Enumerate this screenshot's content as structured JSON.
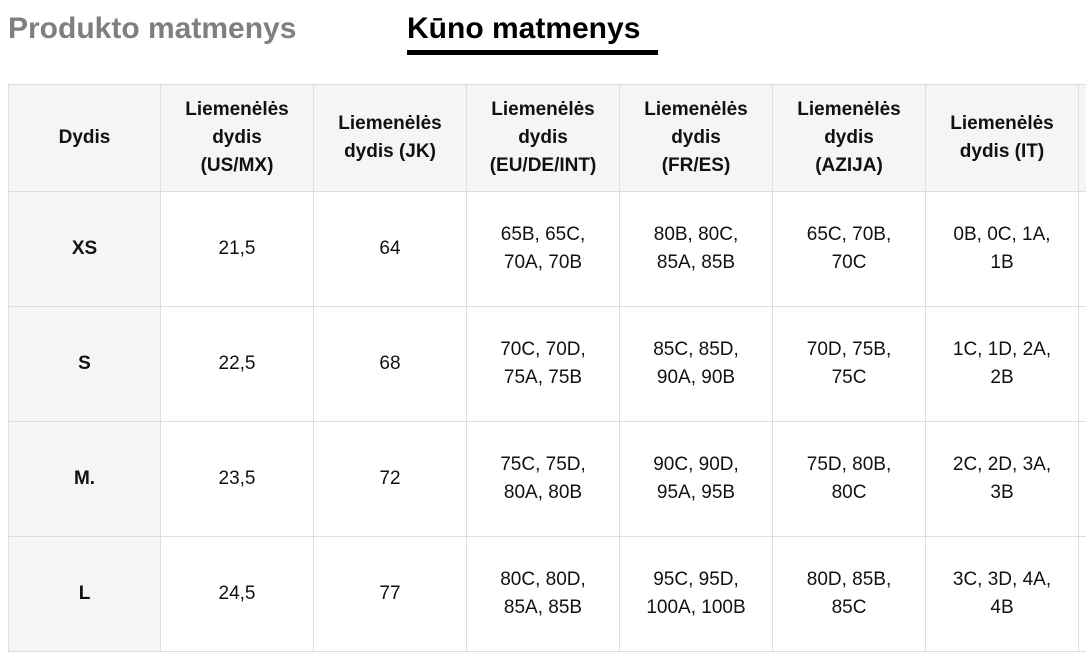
{
  "tabs": {
    "product": "Produkto matmenys",
    "body": "Kūno matmenys"
  },
  "table": {
    "headers": [
      "Dydis",
      "Liemenėlės\ndydis\n(US/MX)",
      "Liemenėlės\ndydis (JK)",
      "Liemenėlės\ndydis\n(EU/DE/INT)",
      "Liemenėlės\ndydis\n(FR/ES)",
      "Liemenėlės\ndydis\n(AZIJA)",
      "Liemenėlės\ndydis (IT)"
    ],
    "rows": [
      [
        "XS",
        "21,5",
        "64",
        "65B, 65C,\n70A, 70B",
        "80B, 80C,\n85A, 85B",
        "65C, 70B,\n70C",
        "0B, 0C, 1A,\n1B"
      ],
      [
        "S",
        "22,5",
        "68",
        "70C, 70D,\n75A, 75B",
        "85C, 85D,\n90A, 90B",
        "70D, 75B,\n75C",
        "1C, 1D, 2A,\n2B"
      ],
      [
        "M.",
        "23,5",
        "72",
        "75C, 75D,\n80A, 80B",
        "90C, 90D,\n95A, 95B",
        "75D, 80B,\n80C",
        "2C, 2D, 3A,\n3B"
      ],
      [
        "L",
        "24,5",
        "77",
        "80C, 80D,\n85A, 85B",
        "95C, 95D,\n100A, 100B",
        "80D, 85B,\n85C",
        "3C, 3D, 4A,\n4B"
      ]
    ]
  },
  "colors": {
    "active_tab": "#000000",
    "inactive_tab": "#7f7f7f",
    "header_bg": "#f5f5f5",
    "border": "#dddddd"
  }
}
